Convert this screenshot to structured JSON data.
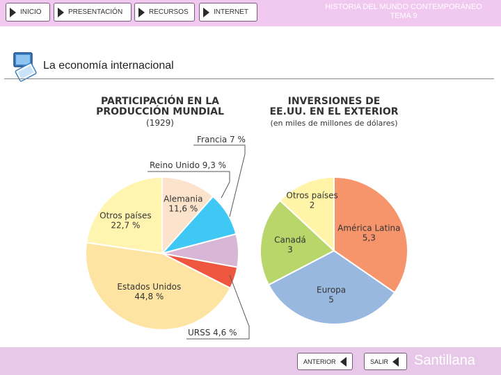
{
  "nav": {
    "inicio": "INICIO",
    "presentacion": "PRESENTACIÓN",
    "recursos": "RECURSOS",
    "internet": "INTERNET"
  },
  "header": {
    "line1": "HISTORIA DEL MUNDO CONTEMPORÁNEO",
    "line2": "TEMA 9"
  },
  "section": {
    "title": "La economía internacional"
  },
  "footer": {
    "anterior": "ANTERIOR",
    "salir": "SALIR",
    "brand": "Santillana"
  },
  "colors": {
    "topbar": "#f0c8f0",
    "bottombar": "#e8c8e8"
  },
  "chart_data": [
    {
      "type": "pie",
      "title": "PARTICIPACIÓN EN LA PRODUCCIÓN MUNDIAL",
      "subtitle": "(1929)",
      "slices": [
        {
          "label": "Alemania",
          "value_label": "11,6 %",
          "value": 11.6,
          "color": "#fbe3cc"
        },
        {
          "label": "Reino Unido",
          "value_label": "9,3 %",
          "value": 9.3,
          "color": "#3fc8f4"
        },
        {
          "label": "Francia",
          "value_label": "7 %",
          "value": 7,
          "color": "#d8b6d6"
        },
        {
          "label": "URSS",
          "value_label": "4,6 %",
          "value": 4.6,
          "color": "#ee5640"
        },
        {
          "label": "Estados Unidos",
          "value_label": "44,8 %",
          "value": 44.8,
          "color": "#fde4a2"
        },
        {
          "label": "Otros países",
          "value_label": "22,7 %",
          "value": 22.7,
          "color": "#fff4b0"
        }
      ],
      "callouts": [
        "Francia 7 %",
        "Reino Unido 9,3 %",
        "URSS 4,6 %"
      ]
    },
    {
      "type": "pie",
      "title": "INVERSIONES DE EE.UU. EN EL EXTERIOR",
      "subtitle": "(en miles de millones de dólares)",
      "slices": [
        {
          "label": "América Latina",
          "value_label": "5,3",
          "value": 5.3,
          "color": "#f6956c"
        },
        {
          "label": "Europa",
          "value_label": "5",
          "value": 5,
          "color": "#98b8e0"
        },
        {
          "label": "Canadá",
          "value_label": "3",
          "value": 3,
          "color": "#b8d66a"
        },
        {
          "label": "Otros países",
          "value_label": "2",
          "value": 2,
          "color": "#fff4a8"
        }
      ]
    }
  ]
}
